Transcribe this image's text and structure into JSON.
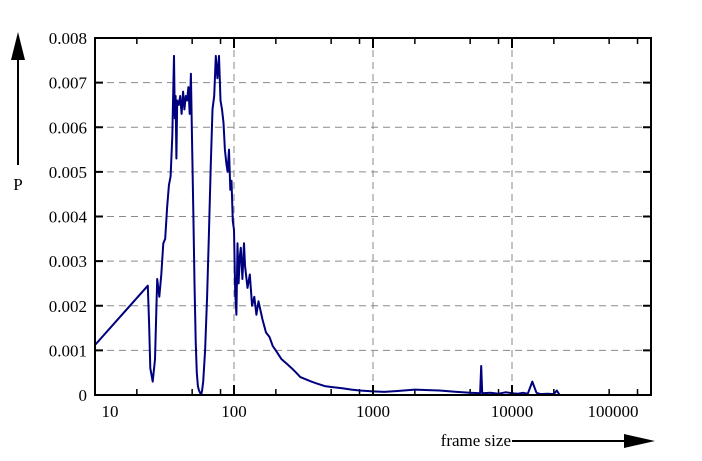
{
  "chart_data": {
    "type": "line",
    "title": "",
    "xlabel": "frame size",
    "ylabel": "P",
    "xscale": "log",
    "xlim": [
      10,
      100000
    ],
    "ylim": [
      0,
      0.008
    ],
    "grid": true,
    "grid_style": "dashed",
    "legend": null,
    "x_tick_labels": [
      "10",
      "100",
      "1000",
      "10000",
      "100000"
    ],
    "x_ticks": [
      10,
      100,
      1000,
      10000,
      100000
    ],
    "y_tick_labels": [
      "0",
      "0.001",
      "0.002",
      "0.003",
      "0.004",
      "0.005",
      "0.006",
      "0.007",
      "0.008"
    ],
    "y_ticks": [
      0,
      0.001,
      0.002,
      0.003,
      0.004,
      0.005,
      0.006,
      0.007,
      0.008
    ],
    "line_color": "#00007f",
    "series": [
      {
        "name": "P(frame size)",
        "x": [
          10,
          24,
          24.5,
          25,
          26,
          27,
          28,
          29,
          30,
          31,
          32,
          33,
          34,
          35,
          36,
          37,
          37.5,
          38,
          38.5,
          39,
          40,
          41,
          42,
          43,
          44,
          45,
          46,
          47,
          48,
          49,
          50,
          51,
          52,
          53,
          54,
          55,
          56,
          57,
          58,
          59,
          60,
          62,
          64,
          66,
          68,
          70,
          72,
          74,
          76,
          78,
          80,
          82,
          84,
          86,
          88,
          90,
          92,
          94,
          96,
          98,
          100,
          102,
          104,
          106,
          108,
          110,
          112,
          115,
          118,
          120,
          125,
          130,
          135,
          140,
          145,
          150,
          160,
          170,
          180,
          190,
          200,
          220,
          240,
          260,
          280,
          300,
          330,
          360,
          400,
          450,
          500,
          600,
          700,
          800,
          1000,
          1200,
          1500,
          2000,
          2500,
          3000,
          4000,
          5000,
          5900,
          6000,
          6100,
          7000,
          8000,
          9000,
          10000,
          11000,
          12000,
          13000,
          14000,
          15000,
          16000,
          18000,
          20000,
          21000,
          22000
        ],
        "y": [
          0.00112,
          0.00245,
          0.0016,
          0.0006,
          0.0003,
          0.0008,
          0.0026,
          0.0022,
          0.0027,
          0.0034,
          0.0035,
          0.0042,
          0.0047,
          0.0049,
          0.0058,
          0.0076,
          0.0062,
          0.0067,
          0.0053,
          0.0066,
          0.0065,
          0.0067,
          0.0063,
          0.0068,
          0.0064,
          0.0067,
          0.0066,
          0.0069,
          0.0063,
          0.0072,
          0.0055,
          0.004,
          0.0025,
          0.0012,
          0.0005,
          0.0002,
          0.0001,
          5e-05,
          0.0,
          0.0001,
          0.0003,
          0.001,
          0.0022,
          0.0036,
          0.0051,
          0.0064,
          0.0067,
          0.0076,
          0.0071,
          0.0076,
          0.0066,
          0.0064,
          0.0061,
          0.0055,
          0.0052,
          0.005,
          0.0055,
          0.0046,
          0.0048,
          0.0039,
          0.0037,
          0.0023,
          0.0018,
          0.0034,
          0.0025,
          0.0031,
          0.0033,
          0.0026,
          0.0034,
          0.0029,
          0.0024,
          0.0027,
          0.002,
          0.0022,
          0.0018,
          0.0021,
          0.0017,
          0.0014,
          0.0013,
          0.0011,
          0.001,
          0.0008,
          0.0007,
          0.0006,
          0.0005,
          0.0004,
          0.00035,
          0.0003,
          0.00025,
          0.0002,
          0.00018,
          0.00015,
          0.00012,
          0.0001,
          8e-05,
          7e-05,
          9e-05,
          0.00012,
          0.00011,
          0.0001,
          7e-05,
          5e-05,
          4e-05,
          0.00065,
          4e-05,
          5e-05,
          3e-05,
          6e-05,
          4e-05,
          3e-05,
          5e-05,
          3e-05,
          0.0003,
          5e-05,
          2e-05,
          3e-05,
          2e-05,
          0.0001,
          0.0
        ]
      }
    ]
  }
}
